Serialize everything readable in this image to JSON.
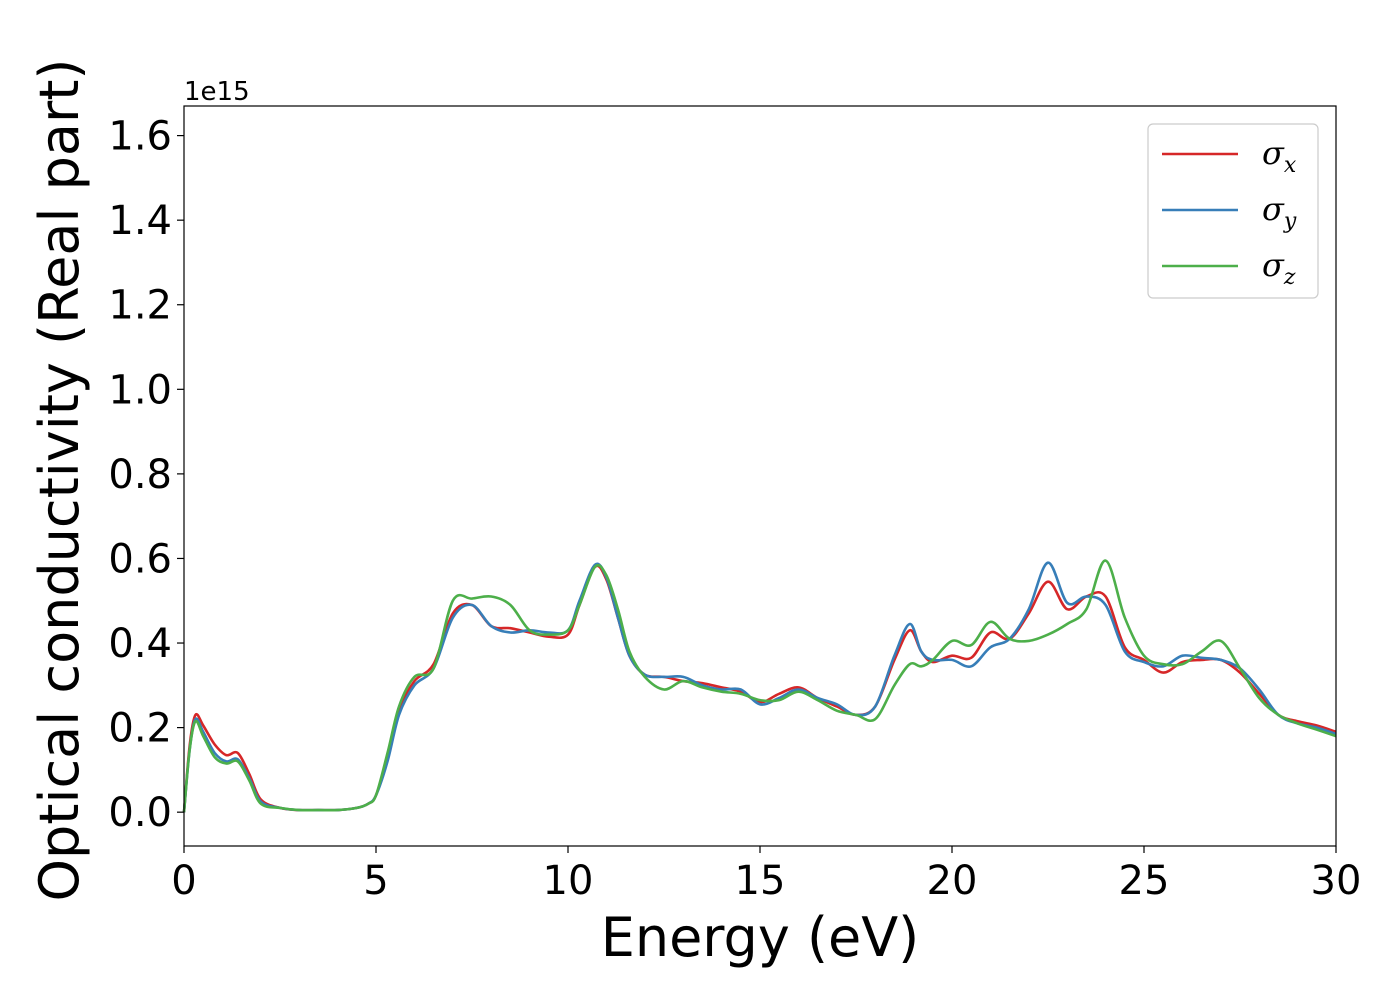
{
  "chart_data": {
    "type": "line",
    "title": "",
    "xlabel": "Energy (eV)",
    "ylabel": "Optical conductivity (Real part)",
    "y_offset_label": "1e15",
    "xlim": [
      0,
      30
    ],
    "ylim": [
      -0.08,
      1.67
    ],
    "x_ticks": [
      0,
      5,
      10,
      15,
      20,
      25,
      30
    ],
    "x_tick_labels": [
      "0",
      "5",
      "10",
      "15",
      "20",
      "25",
      "30"
    ],
    "y_ticks": [
      0.0,
      0.2,
      0.4,
      0.6,
      0.8,
      1.0,
      1.2,
      1.4,
      1.6
    ],
    "y_tick_labels": [
      "0.0",
      "0.2",
      "0.4",
      "0.6",
      "0.8",
      "1.0",
      "1.2",
      "1.4",
      "1.6"
    ],
    "grid": false,
    "legend_position": "top-right",
    "series": [
      {
        "name": "σx",
        "symbol": "σ",
        "subscript": "x",
        "color": "#d62728",
        "x": [
          0,
          0.15,
          0.3,
          0.5,
          0.8,
          1.1,
          1.4,
          1.7,
          2.0,
          2.5,
          3.0,
          3.5,
          4.0,
          4.5,
          4.8,
          5.0,
          5.3,
          5.6,
          6.0,
          6.5,
          7.0,
          7.5,
          8.0,
          8.5,
          9.0,
          9.5,
          10.0,
          10.3,
          10.7,
          11.0,
          11.3,
          11.6,
          12.0,
          12.5,
          13.0,
          13.5,
          14.0,
          14.5,
          15.0,
          15.5,
          16.0,
          16.5,
          17.0,
          17.5,
          18.0,
          18.5,
          18.9,
          19.2,
          19.5,
          20.0,
          20.5,
          21.0,
          21.5,
          22.0,
          22.5,
          23.0,
          23.5,
          24.0,
          24.5,
          25.0,
          25.5,
          26.0,
          26.5,
          27.0,
          27.5,
          28.0,
          28.5,
          29.0,
          29.5,
          30.0
        ],
        "y": [
          0.0,
          0.16,
          0.23,
          0.205,
          0.16,
          0.135,
          0.14,
          0.09,
          0.03,
          0.01,
          0.005,
          0.005,
          0.005,
          0.01,
          0.02,
          0.04,
          0.13,
          0.24,
          0.31,
          0.35,
          0.47,
          0.49,
          0.44,
          0.435,
          0.425,
          0.415,
          0.42,
          0.49,
          0.58,
          0.55,
          0.46,
          0.37,
          0.325,
          0.32,
          0.31,
          0.305,
          0.295,
          0.285,
          0.26,
          0.28,
          0.295,
          0.27,
          0.25,
          0.23,
          0.25,
          0.36,
          0.43,
          0.38,
          0.355,
          0.37,
          0.365,
          0.425,
          0.41,
          0.47,
          0.545,
          0.48,
          0.51,
          0.51,
          0.39,
          0.36,
          0.33,
          0.355,
          0.36,
          0.36,
          0.33,
          0.28,
          0.23,
          0.215,
          0.205,
          0.19
        ]
      },
      {
        "name": "σy",
        "symbol": "σ",
        "subscript": "y",
        "color": "#377eb8",
        "x": [
          0,
          0.15,
          0.3,
          0.5,
          0.8,
          1.1,
          1.4,
          1.7,
          2.0,
          2.5,
          3.0,
          3.5,
          4.0,
          4.5,
          4.8,
          5.0,
          5.3,
          5.6,
          6.0,
          6.5,
          7.0,
          7.5,
          8.0,
          8.5,
          9.0,
          9.5,
          10.0,
          10.3,
          10.7,
          11.0,
          11.3,
          11.6,
          12.0,
          12.5,
          13.0,
          13.5,
          14.0,
          14.5,
          15.0,
          15.5,
          16.0,
          16.5,
          17.0,
          17.5,
          18.0,
          18.5,
          18.9,
          19.2,
          19.5,
          20.0,
          20.5,
          21.0,
          21.5,
          22.0,
          22.5,
          23.0,
          23.5,
          24.0,
          24.5,
          25.0,
          25.5,
          26.0,
          26.5,
          27.0,
          27.5,
          28.0,
          28.5,
          29.0,
          29.5,
          30.0
        ],
        "y": [
          0.0,
          0.15,
          0.22,
          0.19,
          0.14,
          0.12,
          0.125,
          0.08,
          0.025,
          0.01,
          0.005,
          0.005,
          0.005,
          0.01,
          0.02,
          0.04,
          0.12,
          0.23,
          0.3,
          0.34,
          0.46,
          0.49,
          0.44,
          0.425,
          0.43,
          0.425,
          0.43,
          0.5,
          0.585,
          0.555,
          0.46,
          0.37,
          0.325,
          0.32,
          0.32,
          0.3,
          0.29,
          0.29,
          0.255,
          0.27,
          0.29,
          0.27,
          0.255,
          0.23,
          0.25,
          0.37,
          0.445,
          0.38,
          0.36,
          0.36,
          0.345,
          0.39,
          0.41,
          0.48,
          0.59,
          0.495,
          0.51,
          0.49,
          0.38,
          0.355,
          0.345,
          0.37,
          0.365,
          0.36,
          0.34,
          0.29,
          0.23,
          0.21,
          0.2,
          0.185
        ]
      },
      {
        "name": "σz",
        "symbol": "σ",
        "subscript": "z",
        "color": "#4daf4a",
        "x": [
          0,
          0.15,
          0.3,
          0.5,
          0.8,
          1.1,
          1.4,
          1.7,
          2.0,
          2.5,
          3.0,
          3.5,
          4.0,
          4.5,
          4.8,
          5.0,
          5.3,
          5.6,
          6.0,
          6.5,
          7.0,
          7.5,
          8.0,
          8.5,
          9.0,
          9.5,
          10.0,
          10.3,
          10.7,
          11.0,
          11.3,
          11.6,
          12.0,
          12.5,
          13.0,
          13.5,
          14.0,
          14.5,
          15.0,
          15.5,
          16.0,
          16.5,
          17.0,
          17.5,
          18.0,
          18.5,
          18.9,
          19.2,
          19.5,
          20.0,
          20.5,
          21.0,
          21.5,
          22.0,
          22.5,
          23.0,
          23.5,
          24.0,
          24.5,
          25.0,
          25.5,
          26.0,
          26.5,
          27.0,
          27.5,
          28.0,
          28.5,
          29.0,
          29.5,
          30.0
        ],
        "y": [
          0.0,
          0.15,
          0.215,
          0.18,
          0.13,
          0.115,
          0.12,
          0.075,
          0.02,
          0.01,
          0.005,
          0.005,
          0.005,
          0.01,
          0.02,
          0.04,
          0.14,
          0.25,
          0.32,
          0.34,
          0.5,
          0.505,
          0.51,
          0.49,
          0.43,
          0.42,
          0.43,
          0.49,
          0.58,
          0.56,
          0.48,
          0.38,
          0.32,
          0.29,
          0.31,
          0.295,
          0.285,
          0.28,
          0.265,
          0.265,
          0.285,
          0.265,
          0.24,
          0.23,
          0.22,
          0.3,
          0.35,
          0.345,
          0.36,
          0.405,
          0.395,
          0.45,
          0.41,
          0.405,
          0.42,
          0.445,
          0.48,
          0.595,
          0.46,
          0.37,
          0.35,
          0.35,
          0.38,
          0.405,
          0.34,
          0.27,
          0.23,
          0.21,
          0.195,
          0.18
        ]
      }
    ]
  }
}
